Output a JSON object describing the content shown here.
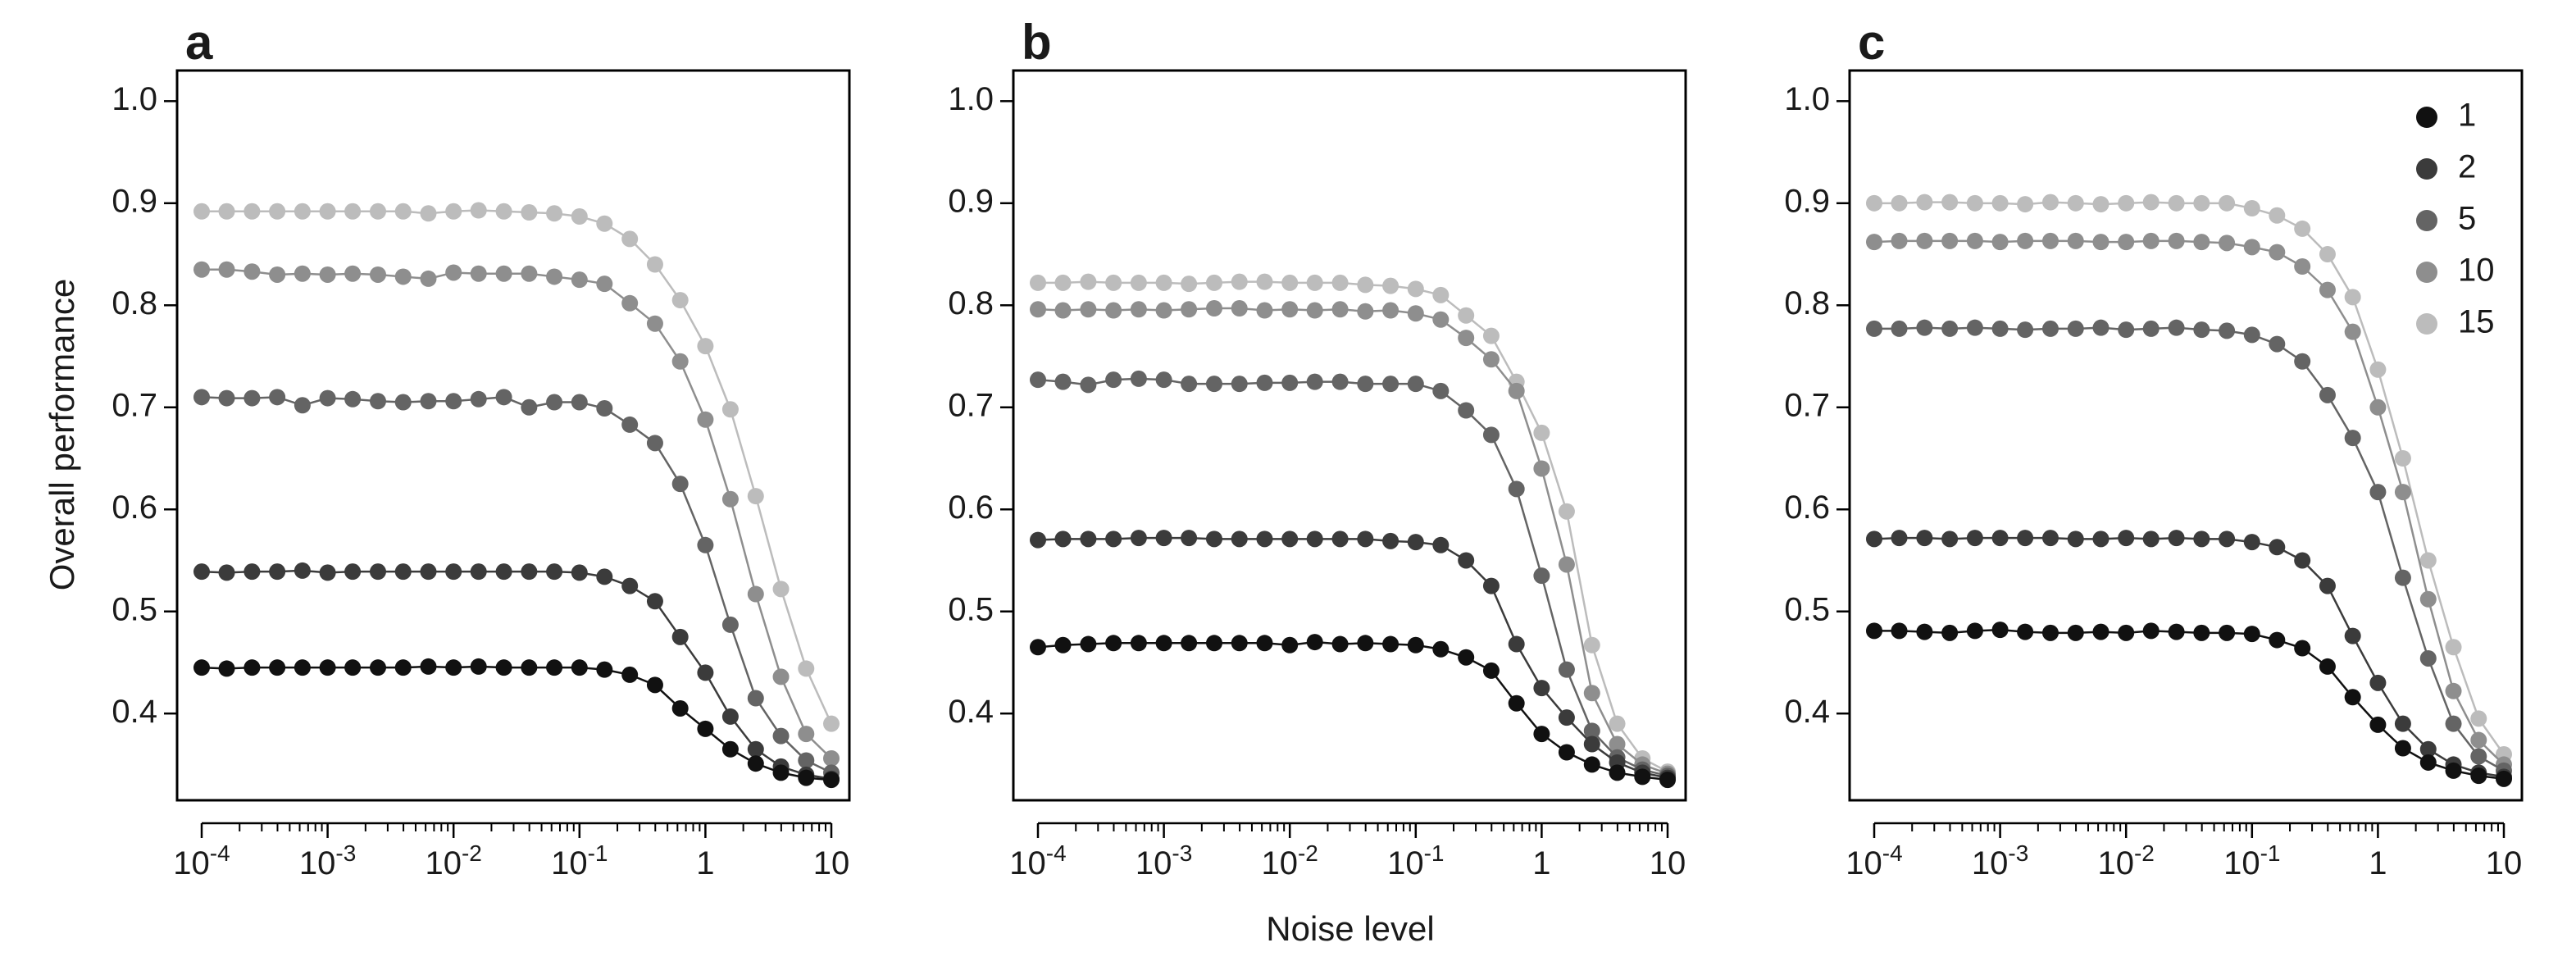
{
  "chart_data": {
    "type": "line",
    "ylabel": "Overall performance",
    "xlabel": "Noise level",
    "xscale": "log",
    "xlim": [
      0.0001,
      10
    ],
    "ylim": [
      0.315,
      1.03
    ],
    "yticks": [
      0.4,
      0.5,
      0.6,
      0.7,
      0.8,
      0.9,
      1.0
    ],
    "ytick_labels": [
      "0.4",
      "0.5",
      "0.6",
      "0.7",
      "0.8",
      "0.9",
      "1.0"
    ],
    "xticks": [
      {
        "base": "10",
        "exp": "-4"
      },
      {
        "base": "10",
        "exp": "-3"
      },
      {
        "base": "10",
        "exp": "-2"
      },
      {
        "base": "10",
        "exp": "-1"
      },
      {
        "base": "1",
        "exp": ""
      },
      {
        "base": "10",
        "exp": ""
      }
    ],
    "x": [
      0.0001,
      0.000158,
      0.000251,
      0.000398,
      0.000631,
      0.001,
      0.00158,
      0.00251,
      0.00398,
      0.00631,
      0.01,
      0.0158,
      0.0251,
      0.0398,
      0.0631,
      0.1,
      0.158,
      0.251,
      0.398,
      0.631,
      1,
      1.58,
      2.51,
      3.98,
      6.31,
      10
    ],
    "legend": {
      "position": "top-right",
      "entries": [
        "1",
        "2",
        "5",
        "10",
        "15"
      ],
      "colors": [
        "#111111",
        "#3b3b3b",
        "#646464",
        "#8e8e8e",
        "#bcbcbc"
      ]
    },
    "panels": [
      {
        "label": "a",
        "series": [
          {
            "name": "1",
            "values": [
              0.445,
              0.444,
              0.445,
              0.445,
              0.445,
              0.445,
              0.445,
              0.445,
              0.445,
              0.446,
              0.445,
              0.446,
              0.445,
              0.445,
              0.445,
              0.445,
              0.443,
              0.438,
              0.428,
              0.405,
              0.385,
              0.365,
              0.351,
              0.342,
              0.337,
              0.335
            ]
          },
          {
            "name": "2",
            "values": [
              0.539,
              0.538,
              0.539,
              0.539,
              0.54,
              0.538,
              0.539,
              0.539,
              0.539,
              0.539,
              0.539,
              0.539,
              0.539,
              0.539,
              0.539,
              0.538,
              0.534,
              0.525,
              0.51,
              0.475,
              0.44,
              0.397,
              0.365,
              0.348,
              0.34,
              0.336
            ]
          },
          {
            "name": "5",
            "values": [
              0.71,
              0.709,
              0.709,
              0.71,
              0.702,
              0.709,
              0.708,
              0.706,
              0.705,
              0.706,
              0.706,
              0.708,
              0.71,
              0.7,
              0.705,
              0.705,
              0.699,
              0.683,
              0.665,
              0.625,
              0.565,
              0.487,
              0.415,
              0.378,
              0.354,
              0.342
            ]
          },
          {
            "name": "10",
            "values": [
              0.835,
              0.835,
              0.833,
              0.83,
              0.831,
              0.83,
              0.831,
              0.83,
              0.828,
              0.826,
              0.832,
              0.831,
              0.831,
              0.831,
              0.828,
              0.825,
              0.821,
              0.802,
              0.782,
              0.745,
              0.688,
              0.61,
              0.517,
              0.436,
              0.38,
              0.356
            ]
          },
          {
            "name": "15",
            "values": [
              0.892,
              0.892,
              0.892,
              0.892,
              0.892,
              0.892,
              0.892,
              0.892,
              0.892,
              0.89,
              0.892,
              0.893,
              0.892,
              0.891,
              0.89,
              0.887,
              0.88,
              0.865,
              0.84,
              0.805,
              0.76,
              0.698,
              0.613,
              0.522,
              0.444,
              0.39
            ]
          }
        ]
      },
      {
        "label": "b",
        "series": [
          {
            "name": "1",
            "values": [
              0.465,
              0.467,
              0.468,
              0.469,
              0.469,
              0.469,
              0.469,
              0.469,
              0.469,
              0.469,
              0.467,
              0.47,
              0.468,
              0.469,
              0.468,
              0.467,
              0.463,
              0.455,
              0.442,
              0.41,
              0.38,
              0.362,
              0.35,
              0.342,
              0.338,
              0.335
            ]
          },
          {
            "name": "2",
            "values": [
              0.57,
              0.571,
              0.571,
              0.571,
              0.572,
              0.572,
              0.572,
              0.571,
              0.571,
              0.571,
              0.571,
              0.571,
              0.571,
              0.571,
              0.569,
              0.568,
              0.565,
              0.55,
              0.525,
              0.468,
              0.425,
              0.396,
              0.37,
              0.352,
              0.342,
              0.337
            ]
          },
          {
            "name": "5",
            "values": [
              0.727,
              0.725,
              0.722,
              0.727,
              0.728,
              0.727,
              0.723,
              0.723,
              0.723,
              0.724,
              0.724,
              0.725,
              0.725,
              0.723,
              0.723,
              0.723,
              0.716,
              0.697,
              0.673,
              0.62,
              0.535,
              0.443,
              0.383,
              0.357,
              0.345,
              0.339
            ]
          },
          {
            "name": "10",
            "values": [
              0.796,
              0.795,
              0.796,
              0.795,
              0.796,
              0.795,
              0.796,
              0.797,
              0.797,
              0.795,
              0.796,
              0.795,
              0.796,
              0.794,
              0.795,
              0.792,
              0.786,
              0.768,
              0.747,
              0.716,
              0.64,
              0.546,
              0.42,
              0.37,
              0.35,
              0.341
            ]
          },
          {
            "name": "15",
            "values": [
              0.822,
              0.822,
              0.823,
              0.822,
              0.822,
              0.822,
              0.821,
              0.822,
              0.823,
              0.823,
              0.822,
              0.822,
              0.822,
              0.82,
              0.819,
              0.816,
              0.81,
              0.79,
              0.77,
              0.725,
              0.675,
              0.598,
              0.467,
              0.39,
              0.356,
              0.343
            ]
          }
        ]
      },
      {
        "label": "c",
        "series": [
          {
            "name": "1",
            "values": [
              0.481,
              0.481,
              0.48,
              0.479,
              0.481,
              0.482,
              0.48,
              0.479,
              0.479,
              0.48,
              0.479,
              0.481,
              0.48,
              0.479,
              0.479,
              0.478,
              0.472,
              0.464,
              0.446,
              0.416,
              0.389,
              0.366,
              0.352,
              0.344,
              0.339,
              0.336
            ]
          },
          {
            "name": "2",
            "values": [
              0.571,
              0.572,
              0.572,
              0.571,
              0.572,
              0.572,
              0.572,
              0.572,
              0.571,
              0.571,
              0.572,
              0.571,
              0.572,
              0.571,
              0.571,
              0.568,
              0.563,
              0.55,
              0.525,
              0.476,
              0.43,
              0.39,
              0.365,
              0.35,
              0.342,
              0.338
            ]
          },
          {
            "name": "5",
            "values": [
              0.777,
              0.777,
              0.778,
              0.777,
              0.778,
              0.777,
              0.776,
              0.777,
              0.777,
              0.778,
              0.776,
              0.777,
              0.778,
              0.776,
              0.775,
              0.771,
              0.762,
              0.745,
              0.712,
              0.67,
              0.617,
              0.533,
              0.454,
              0.39,
              0.358,
              0.344
            ]
          },
          {
            "name": "10",
            "values": [
              0.862,
              0.863,
              0.863,
              0.863,
              0.863,
              0.862,
              0.863,
              0.863,
              0.863,
              0.862,
              0.862,
              0.863,
              0.863,
              0.862,
              0.861,
              0.857,
              0.852,
              0.838,
              0.815,
              0.774,
              0.7,
              0.617,
              0.512,
              0.422,
              0.374,
              0.35
            ]
          },
          {
            "name": "15",
            "values": [
              0.9,
              0.9,
              0.901,
              0.901,
              0.9,
              0.9,
              0.899,
              0.901,
              0.9,
              0.899,
              0.9,
              0.901,
              0.9,
              0.9,
              0.9,
              0.895,
              0.888,
              0.875,
              0.85,
              0.808,
              0.737,
              0.65,
              0.55,
              0.465,
              0.395,
              0.36
            ]
          }
        ]
      }
    ]
  }
}
